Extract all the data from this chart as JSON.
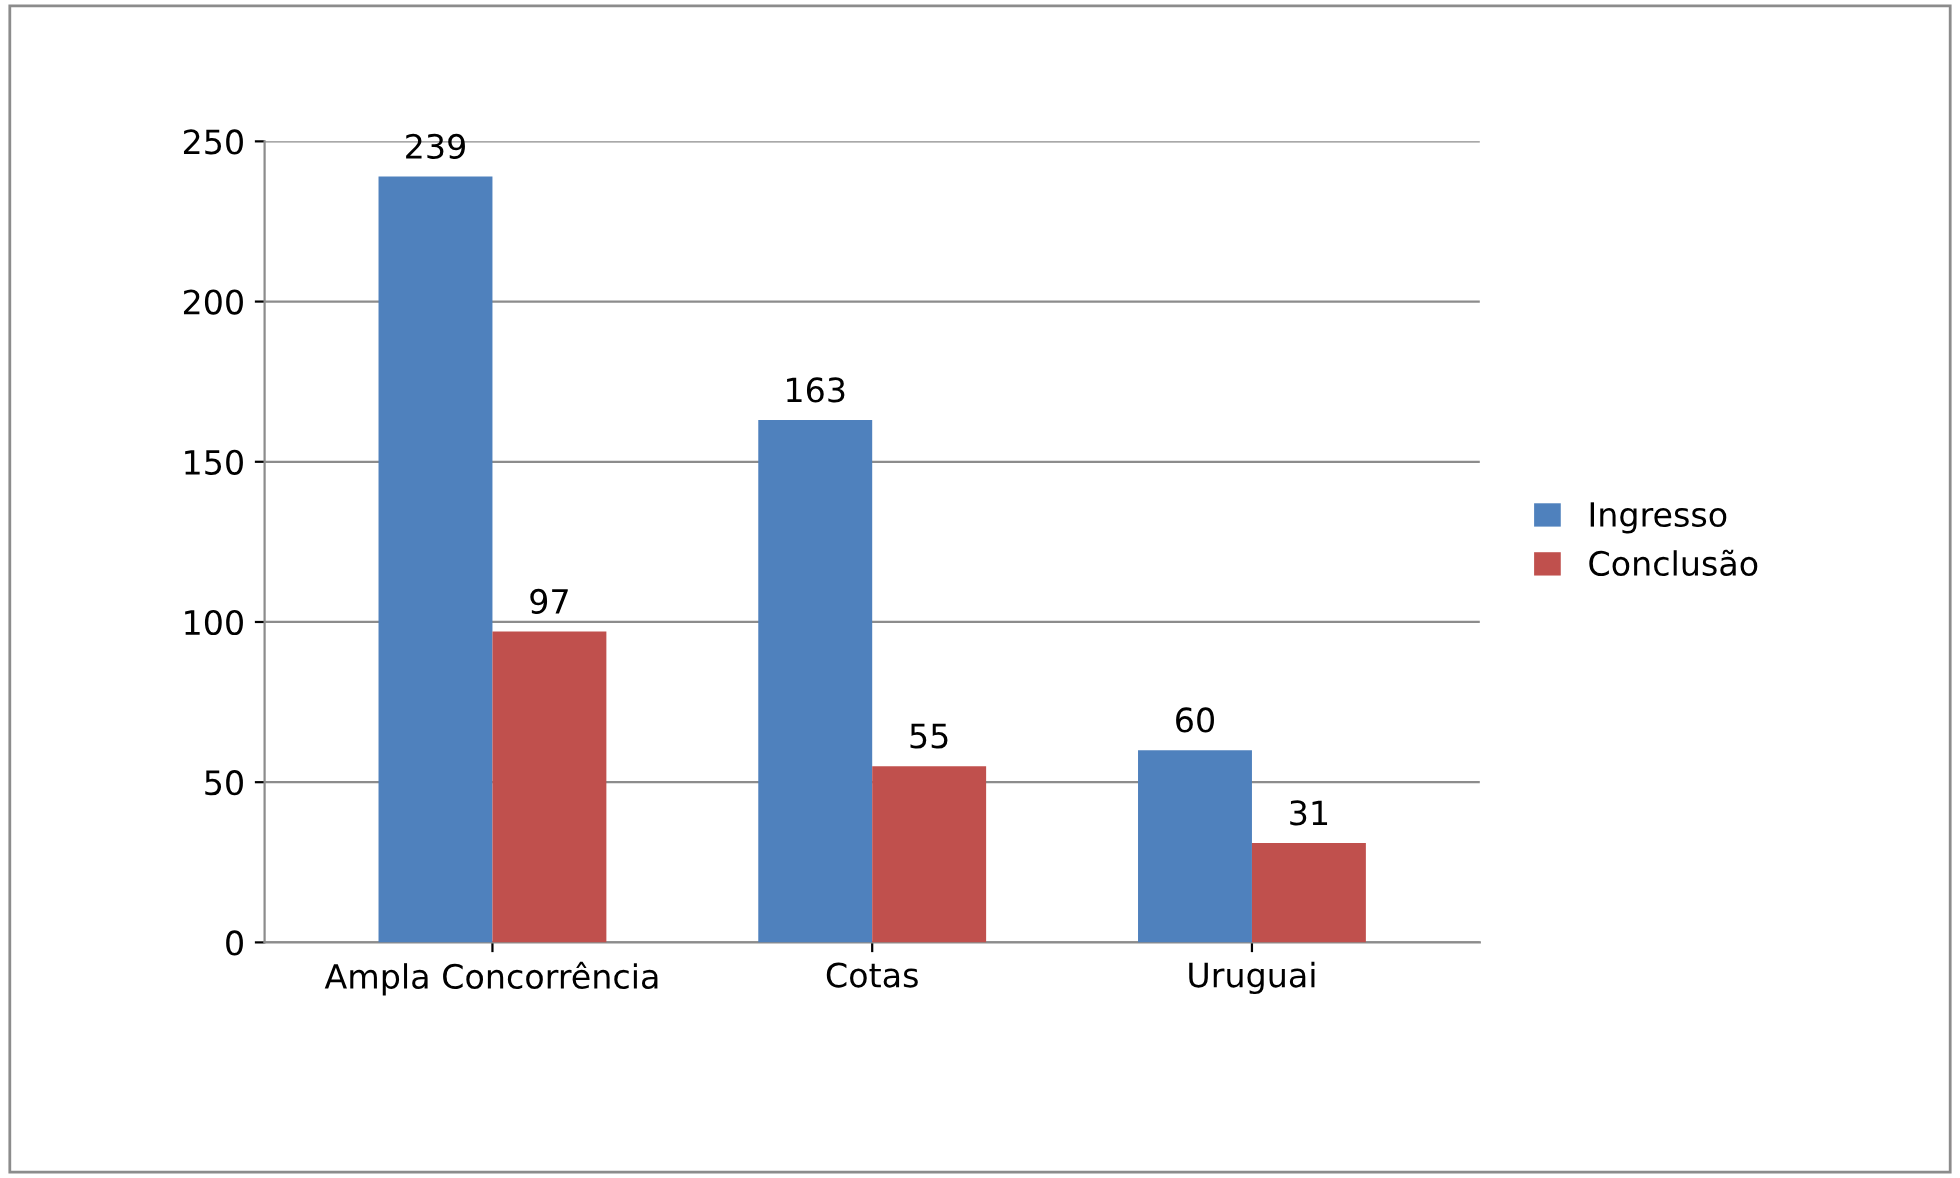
{
  "chart_data": {
    "type": "bar",
    "categories": [
      "Ampla Concorrência",
      "Cotas",
      "Uruguai"
    ],
    "series": [
      {
        "name": "Ingresso",
        "color": "#4f81bd",
        "values": [
          239,
          163,
          60
        ]
      },
      {
        "name": "Conclusão",
        "color": "#c0504d",
        "values": [
          97,
          55,
          31
        ]
      }
    ],
    "ylim": [
      0,
      250
    ],
    "yticks": [
      0,
      50,
      100,
      150,
      200,
      250
    ],
    "grid": "y",
    "legend": "right",
    "data_labels": true
  }
}
